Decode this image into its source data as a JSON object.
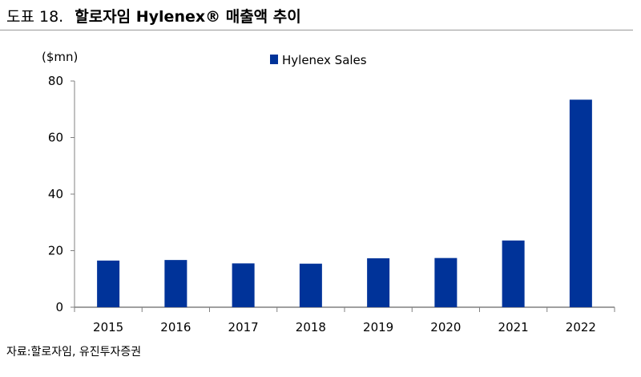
{
  "header": {
    "figure_number": "도표 18.",
    "title": "할로자임 Hylenex® 매출액 추이"
  },
  "source": "자료:할로자임, 유진투자증권",
  "colors": {
    "bar": "#003399",
    "axis": "#808080"
  },
  "chart_data": {
    "type": "bar",
    "title": "할로자임 Hylenex® 매출액 추이",
    "ylabel": "($mn)",
    "xlabel": "",
    "categories": [
      "2015",
      "2016",
      "2017",
      "2018",
      "2019",
      "2020",
      "2021",
      "2022"
    ],
    "series": [
      {
        "name": "Hylenex Sales",
        "values": [
          16.5,
          16.7,
          15.5,
          15.4,
          17.3,
          17.4,
          23.6,
          73.4
        ]
      }
    ],
    "ylim": [
      0,
      80
    ],
    "yticks": [
      0,
      20,
      40,
      60,
      80
    ],
    "grid": false,
    "legend": "top-center"
  }
}
